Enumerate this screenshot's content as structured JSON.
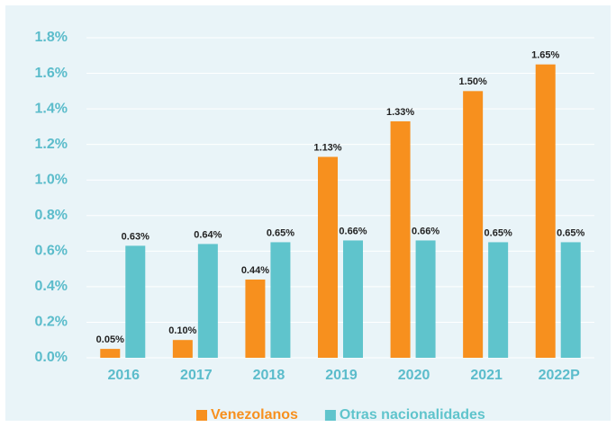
{
  "chart_data": {
    "type": "bar",
    "categories": [
      "2016",
      "2017",
      "2018",
      "2019",
      "2020",
      "2021",
      "2022P"
    ],
    "series": [
      {
        "name": "Venezolanos",
        "color": "#f7901e",
        "values": [
          0.05,
          0.1,
          0.44,
          1.13,
          1.33,
          1.5,
          1.65
        ],
        "value_labels": [
          "0.05%",
          "0.10%",
          "0.44%",
          "1.13%",
          "1.33%",
          "1.50%",
          "1.65%"
        ]
      },
      {
        "name": "Otras nacionalidades",
        "color": "#5fc4cc",
        "values": [
          0.63,
          0.64,
          0.65,
          0.66,
          0.66,
          0.65,
          0.65
        ],
        "value_labels": [
          "0.63%",
          "0.64%",
          "0.65%",
          "0.66%",
          "0.66%",
          "0.65%",
          "0.65%"
        ]
      }
    ],
    "ylim": [
      0,
      1.8
    ],
    "yticks": [
      {
        "value": 0,
        "label": "0.0%"
      },
      {
        "value": 0.2,
        "label": "0.2%"
      },
      {
        "value": 0.4,
        "label": "0.4%"
      },
      {
        "value": 0.6,
        "label": "0.6%"
      },
      {
        "value": 0.8,
        "label": "0.8%"
      },
      {
        "value": 1.0,
        "label": "1.0%"
      },
      {
        "value": 1.2,
        "label": "1.2%"
      },
      {
        "value": 1.4,
        "label": "1.4%"
      },
      {
        "value": 1.6,
        "label": "1.6%"
      },
      {
        "value": 1.8,
        "label": "1.8%"
      }
    ],
    "grid": true,
    "legend": "bottom"
  }
}
